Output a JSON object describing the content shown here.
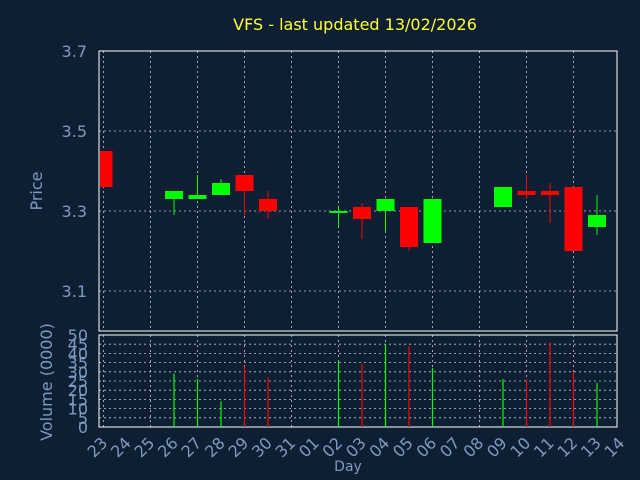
{
  "chart_data": {
    "title": "VFS - last updated 13/02/2026",
    "xlabel": "Day",
    "colors": {
      "background": "#0f1f33",
      "up": "#00ff00",
      "down": "#ff0000",
      "grid": "#ffffff",
      "axis_text": "#7d9bc2",
      "title": "#ffff33"
    },
    "x_labels": [
      "23",
      "24",
      "25",
      "26",
      "27",
      "28",
      "29",
      "30",
      "31",
      "01",
      "02",
      "03",
      "04",
      "05",
      "06",
      "07",
      "08",
      "09",
      "10",
      "11",
      "12",
      "13",
      "14"
    ],
    "price": {
      "type": "candlestick",
      "ylabel": "Price",
      "ylim": [
        3.0,
        3.7
      ],
      "yticks": [
        "3.1",
        "3.3",
        "3.5",
        "3.7"
      ],
      "grid": true,
      "candles": [
        {
          "day": "23",
          "open": 3.45,
          "high": 3.45,
          "low": 3.36,
          "close": 3.36
        },
        {
          "day": "26",
          "open": 3.33,
          "high": 3.35,
          "low": 3.29,
          "close": 3.35
        },
        {
          "day": "27",
          "open": 3.33,
          "high": 3.39,
          "low": 3.33,
          "close": 3.34
        },
        {
          "day": "28",
          "open": 3.34,
          "high": 3.38,
          "low": 3.34,
          "close": 3.37
        },
        {
          "day": "29",
          "open": 3.39,
          "high": 3.39,
          "low": 3.29,
          "close": 3.35
        },
        {
          "day": "30",
          "open": 3.33,
          "high": 3.35,
          "low": 3.28,
          "close": 3.3
        },
        {
          "day": "02",
          "open": 3.3,
          "high": 3.31,
          "low": 3.26,
          "close": 3.3
        },
        {
          "day": "03",
          "open": 3.31,
          "high": 3.32,
          "low": 3.23,
          "close": 3.28
        },
        {
          "day": "04",
          "open": 3.3,
          "high": 3.33,
          "low": 3.25,
          "close": 3.33
        },
        {
          "day": "05",
          "open": 3.31,
          "high": 3.31,
          "low": 3.2,
          "close": 3.21
        },
        {
          "day": "06",
          "open": 3.22,
          "high": 3.33,
          "low": 3.22,
          "close": 3.33
        },
        {
          "day": "09",
          "open": 3.31,
          "high": 3.36,
          "low": 3.31,
          "close": 3.36
        },
        {
          "day": "10",
          "open": 3.35,
          "high": 3.39,
          "low": 3.33,
          "close": 3.34
        },
        {
          "day": "11",
          "open": 3.35,
          "high": 3.37,
          "low": 3.27,
          "close": 3.34
        },
        {
          "day": "12",
          "open": 3.36,
          "high": 3.36,
          "low": 3.2,
          "close": 3.2
        },
        {
          "day": "13",
          "open": 3.26,
          "high": 3.34,
          "low": 3.24,
          "close": 3.29
        }
      ]
    },
    "volume": {
      "type": "bar",
      "ylabel": "Volume (0000)",
      "ylim": [
        0,
        50
      ],
      "yticks": [
        "0",
        "5",
        "10",
        "15",
        "20",
        "25",
        "30",
        "35",
        "40",
        "45",
        "50"
      ],
      "grid": true,
      "bars": [
        {
          "day": "26",
          "value": 29,
          "dir": "up"
        },
        {
          "day": "27",
          "value": 26,
          "dir": "up"
        },
        {
          "day": "28",
          "value": 14,
          "dir": "up"
        },
        {
          "day": "29",
          "value": 33,
          "dir": "down"
        },
        {
          "day": "30",
          "value": 27,
          "dir": "down"
        },
        {
          "day": "02",
          "value": 36,
          "dir": "up"
        },
        {
          "day": "03",
          "value": 34,
          "dir": "down"
        },
        {
          "day": "04",
          "value": 45,
          "dir": "up"
        },
        {
          "day": "05",
          "value": 44,
          "dir": "down"
        },
        {
          "day": "06",
          "value": 32,
          "dir": "up"
        },
        {
          "day": "09",
          "value": 26,
          "dir": "up"
        },
        {
          "day": "10",
          "value": 26,
          "dir": "down"
        },
        {
          "day": "11",
          "value": 46,
          "dir": "down"
        },
        {
          "day": "12",
          "value": 30,
          "dir": "down"
        },
        {
          "day": "13",
          "value": 24,
          "dir": "up"
        }
      ]
    }
  }
}
